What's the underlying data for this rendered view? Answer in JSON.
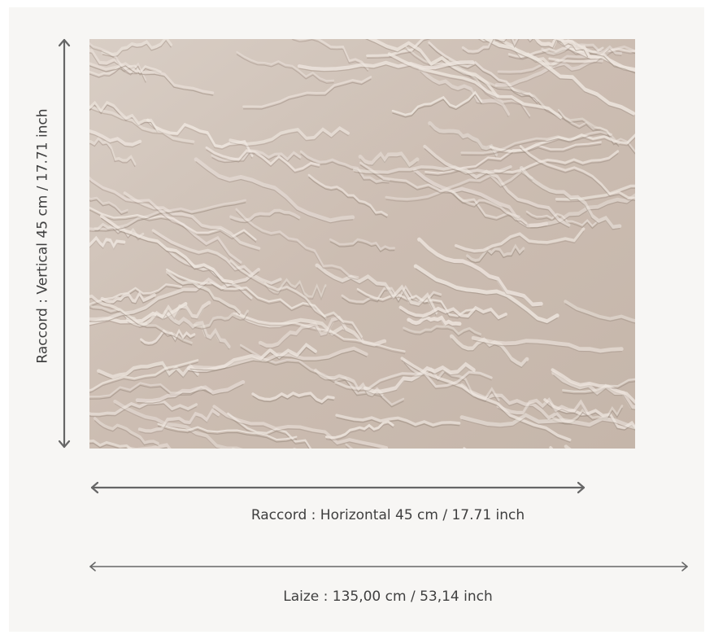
{
  "swatch": {
    "image_description": "beige textured fabric swatch"
  },
  "dimensions": {
    "vertical_label": "Raccord : Vertical 45 cm / 17.71 inch",
    "horizontal_label": "Raccord : Horizontal 45 cm / 17.71 inch",
    "laize_label": "Laize : 135,00 cm / 53,14 inch"
  },
  "colors": {
    "background": "#f7f6f4",
    "arrow": "#666666",
    "text": "#3f3f3f",
    "fabric_base": "#cdbfb4"
  }
}
